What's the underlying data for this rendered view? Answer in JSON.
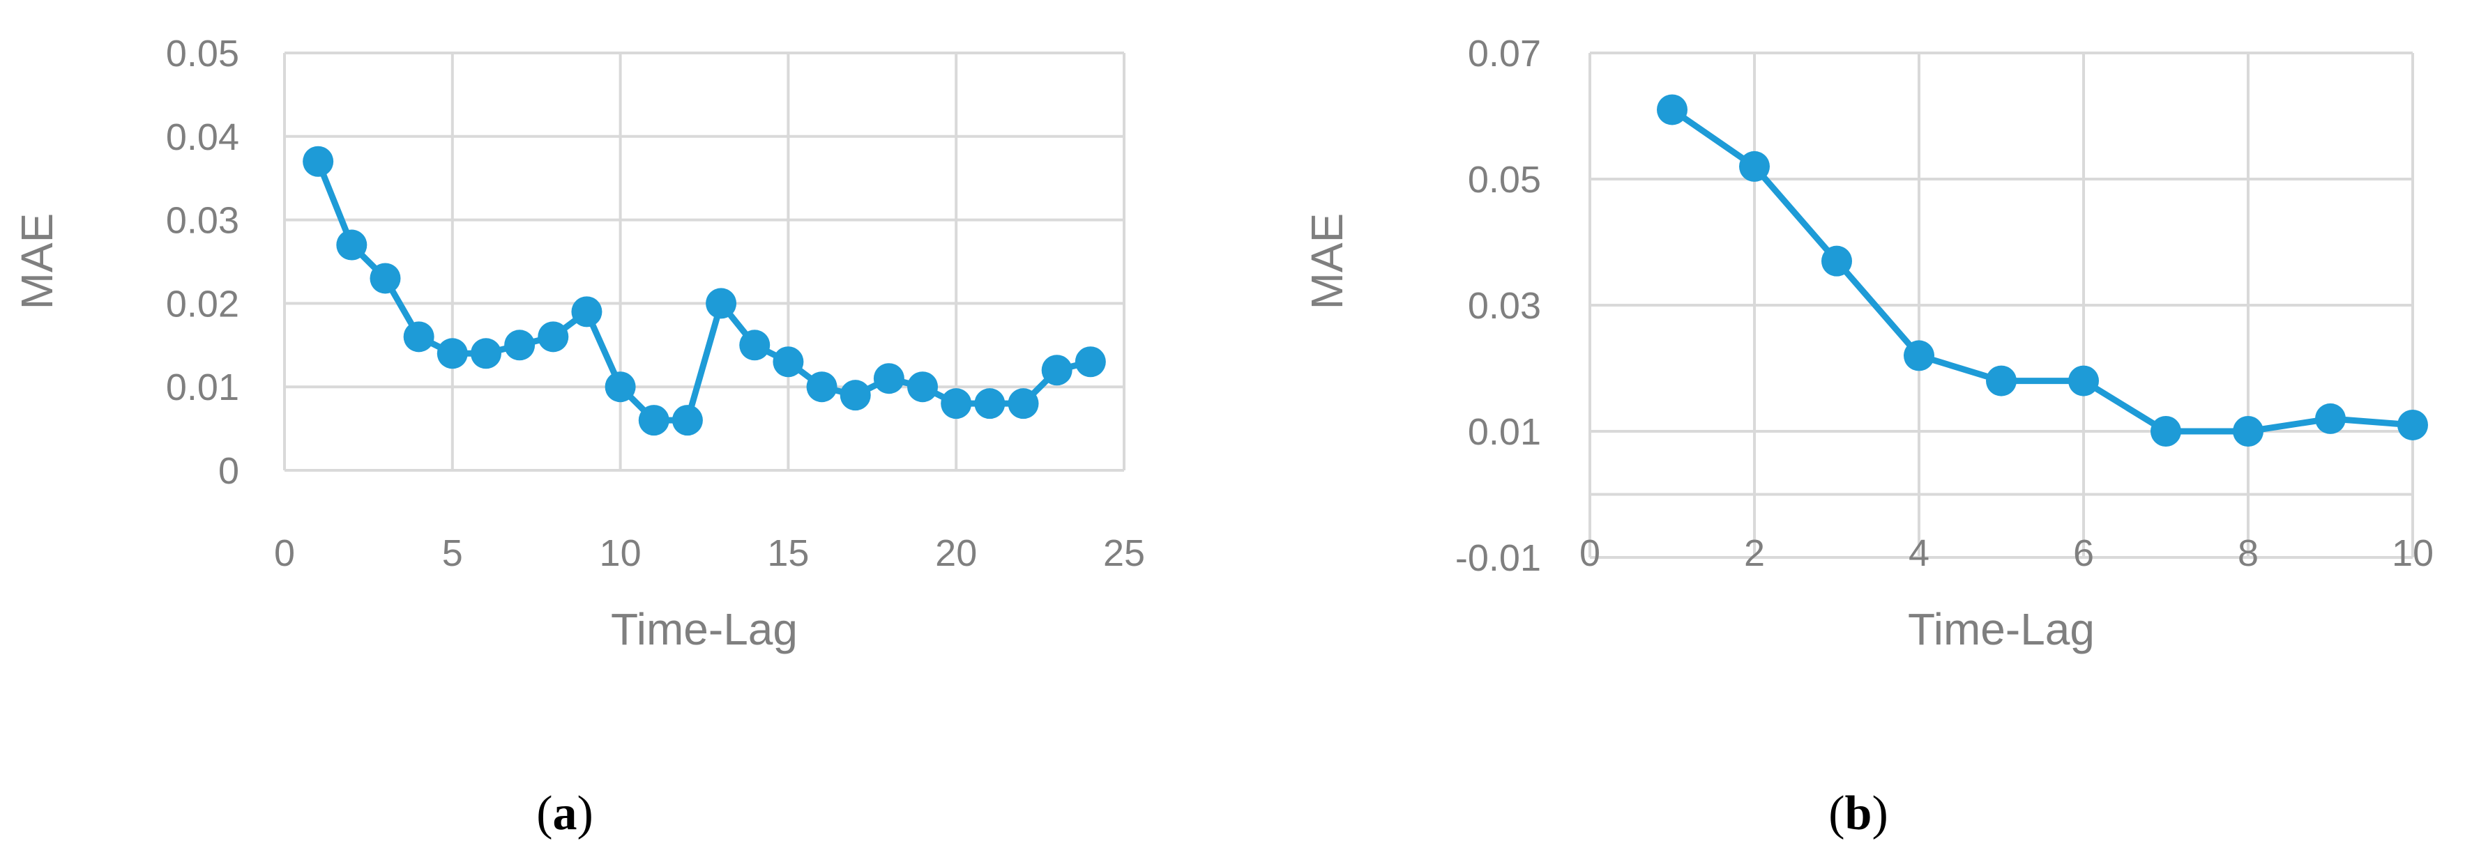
{
  "colors": {
    "series": "#1E9BD7",
    "grid": "#d9d9d9",
    "text": "#7f7f7f"
  },
  "chart_data": [
    {
      "type": "line",
      "panel_label": {
        "open": "(",
        "letter": "a",
        "close": ")"
      },
      "xlabel": "Time-Lag",
      "ylabel": "MAE",
      "xlim": [
        0,
        25
      ],
      "ylim": [
        0,
        0.05
      ],
      "xticks": [
        "0",
        "5",
        "10",
        "15",
        "20",
        "25"
      ],
      "yticks": [
        "0",
        "0.01",
        "0.02",
        "0.03",
        "0.04",
        "0.05"
      ],
      "xtick_values": [
        0,
        5,
        10,
        15,
        20,
        25
      ],
      "ytick_values": [
        0,
        0.01,
        0.02,
        0.03,
        0.04,
        0.05
      ],
      "grid": true,
      "series": [
        {
          "x": [
            1,
            2,
            3,
            4,
            5,
            6,
            7,
            8,
            9,
            10,
            11,
            12,
            13,
            14,
            15,
            16,
            17,
            18,
            19,
            20,
            21,
            22,
            23,
            24
          ],
          "y": [
            0.037,
            0.027,
            0.023,
            0.016,
            0.014,
            0.014,
            0.015,
            0.016,
            0.019,
            0.01,
            0.006,
            0.006,
            0.02,
            0.015,
            0.013,
            0.01,
            0.009,
            0.011,
            0.01,
            0.008,
            0.008,
            0.008,
            0.012,
            0.013
          ]
        }
      ]
    },
    {
      "type": "line",
      "panel_label": {
        "open": "(",
        "letter": "b",
        "close": ")"
      },
      "xlabel": "Time-Lag",
      "ylabel": "MAE",
      "xlim": [
        0,
        10
      ],
      "ylim": [
        -0.01,
        0.07
      ],
      "xticks": [
        "0",
        "2",
        "4",
        "6",
        "8",
        "10"
      ],
      "yticks": [
        "-0.01",
        "0.01",
        "0.03",
        "0.05",
        "0.07"
      ],
      "xtick_values": [
        0,
        2,
        4,
        6,
        8,
        10
      ],
      "ytick_values": [
        -0.01,
        0.01,
        0.03,
        0.05,
        0.07
      ],
      "grid": true,
      "x_axis_at": 0,
      "series": [
        {
          "x": [
            1,
            2,
            3,
            4,
            5,
            6,
            7,
            8,
            9,
            10
          ],
          "y": [
            0.061,
            0.052,
            0.037,
            0.022,
            0.018,
            0.018,
            0.01,
            0.01,
            0.012,
            0.011
          ]
        }
      ]
    }
  ]
}
